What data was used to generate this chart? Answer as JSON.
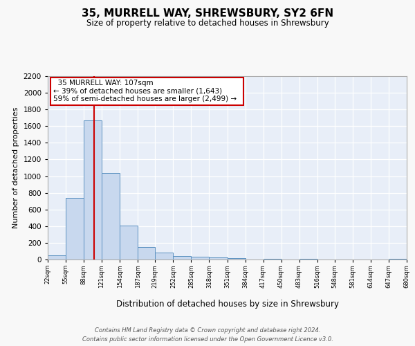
{
  "title": "35, MURRELL WAY, SHREWSBURY, SY2 6FN",
  "subtitle": "Size of property relative to detached houses in Shrewsbury",
  "xlabel": "Distribution of detached houses by size in Shrewsbury",
  "ylabel": "Number of detached properties",
  "bar_color": "#c8d8ee",
  "bar_edge_color": "#5a90c0",
  "background_color": "#e8eef8",
  "grid_color": "#ffffff",
  "property_line_color": "#cc0000",
  "property_size": 107,
  "annotation_title": "35 MURRELL WAY: 107sqm",
  "annotation_line1": "← 39% of detached houses are smaller (1,643)",
  "annotation_line2": "59% of semi-detached houses are larger (2,499) →",
  "bin_edges": [
    22,
    55,
    88,
    121,
    154,
    187,
    219,
    252,
    285,
    318,
    351,
    384,
    417,
    450,
    483,
    516,
    548,
    581,
    614,
    647,
    680
  ],
  "bin_labels": [
    "22sqm",
    "55sqm",
    "88sqm",
    "121sqm",
    "154sqm",
    "187sqm",
    "219sqm",
    "252sqm",
    "285sqm",
    "318sqm",
    "351sqm",
    "384sqm",
    "417sqm",
    "450sqm",
    "483sqm",
    "516sqm",
    "548sqm",
    "581sqm",
    "614sqm",
    "647sqm",
    "680sqm"
  ],
  "bar_heights": [
    50,
    740,
    1670,
    1040,
    405,
    150,
    80,
    45,
    30,
    25,
    20,
    0,
    10,
    0,
    10,
    0,
    0,
    0,
    0,
    5
  ],
  "ylim": [
    0,
    2200
  ],
  "yticks": [
    0,
    200,
    400,
    600,
    800,
    1000,
    1200,
    1400,
    1600,
    1800,
    2000,
    2200
  ],
  "footnote1": "Contains HM Land Registry data © Crown copyright and database right 2024.",
  "footnote2": "Contains public sector information licensed under the Open Government Licence v3.0.",
  "fig_facecolor": "#f8f8f8"
}
